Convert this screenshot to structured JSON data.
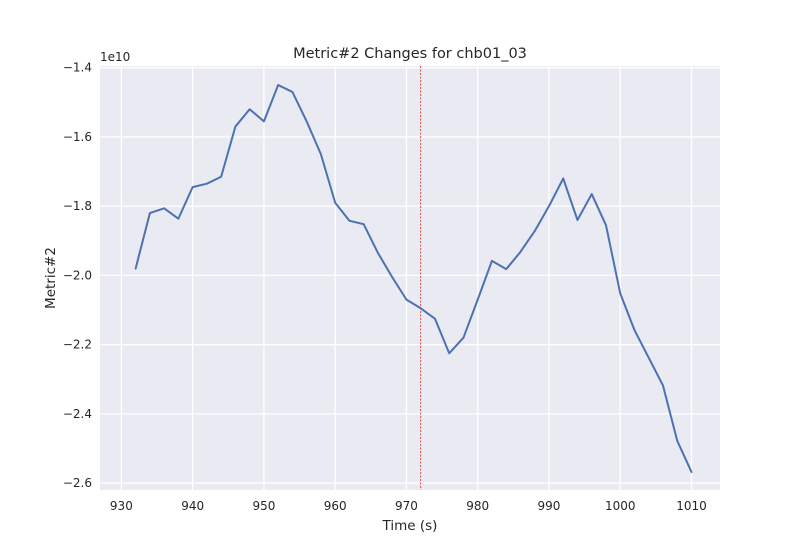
{
  "chart_data": {
    "type": "line",
    "title": "Metric#2 Changes for chb01_03",
    "xlabel": "Time (s)",
    "ylabel": "Metric#2",
    "offset_label": "1e10",
    "xlim": [
      927,
      1014
    ],
    "ylim": [
      -2.62,
      -1.395
    ],
    "x_ticks": [
      930,
      940,
      950,
      960,
      970,
      980,
      990,
      1000,
      1010
    ],
    "y_ticks": [
      -1.4,
      -1.6,
      -1.8,
      -2.0,
      -2.2,
      -2.4,
      -2.6
    ],
    "x_tick_labels": [
      "930",
      "940",
      "950",
      "960",
      "970",
      "980",
      "990",
      "1000",
      "1010"
    ],
    "y_tick_labels": [
      "−1.4",
      "−1.6",
      "−1.8",
      "−2.0",
      "−2.2",
      "−2.4",
      "−2.6"
    ],
    "grid": true,
    "vline": {
      "x": 972,
      "color": "#d62728",
      "style": "dashed"
    },
    "series": [
      {
        "color": "#4c72b0",
        "x": [
          932,
          934,
          936,
          938,
          940,
          942,
          944,
          946,
          948,
          950,
          952,
          954,
          956,
          958,
          960,
          962,
          964,
          966,
          968,
          970,
          972,
          974,
          976,
          978,
          980,
          982,
          984,
          986,
          988,
          990,
          992,
          994,
          996,
          998,
          1000,
          1002,
          1004,
          1006,
          1008,
          1010
        ],
        "y": [
          -1.98,
          -1.82,
          -1.806,
          -1.836,
          -1.745,
          -1.735,
          -1.715,
          -1.57,
          -1.52,
          -1.555,
          -1.45,
          -1.47,
          -1.555,
          -1.65,
          -1.79,
          -1.842,
          -1.852,
          -1.935,
          -2.005,
          -2.07,
          -2.095,
          -2.125,
          -2.225,
          -2.18,
          -2.07,
          -1.958,
          -1.982,
          -1.932,
          -1.872,
          -1.8,
          -1.72,
          -1.84,
          -1.765,
          -1.855,
          -2.052,
          -2.158,
          -2.238,
          -2.318,
          -2.478,
          -2.568
        ]
      }
    ]
  }
}
